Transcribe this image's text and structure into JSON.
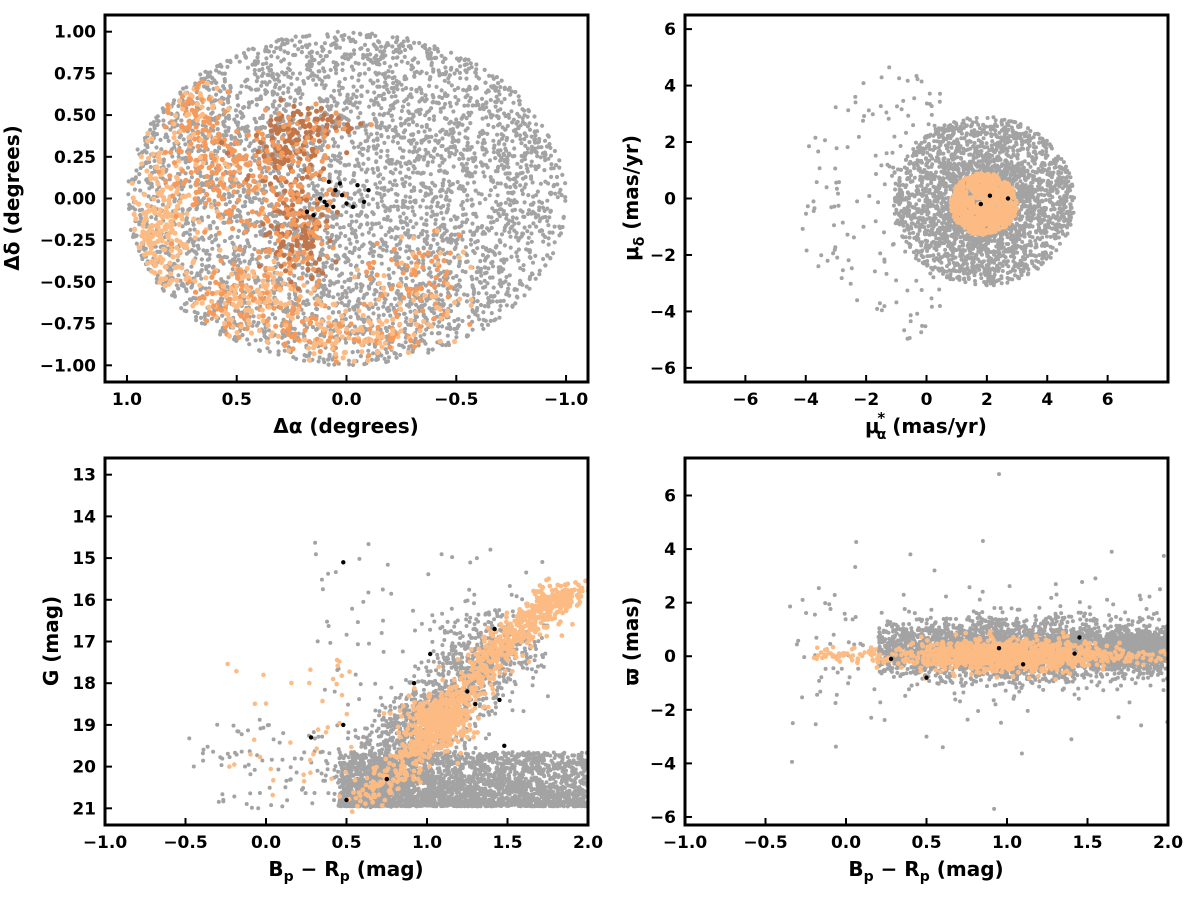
{
  "colors": {
    "field": "#a3a3a3",
    "member_light": "#fdbb84",
    "member_mid": "#f39a5c",
    "member_dark": "#c0764a",
    "core": "#000000"
  },
  "chart_data": [
    {
      "id": "sky",
      "type": "scatter",
      "xlabel_main": "Δα",
      "xlabel_unit": " (degrees)",
      "ylabel_main": "Δδ",
      "ylabel_unit": " (degrees)",
      "xlim": [
        1.1,
        -1.1
      ],
      "ylim": [
        -1.1,
        1.1
      ],
      "xticks": [
        "1.0",
        "0.5",
        "0.0",
        "−0.5",
        "−1.0"
      ],
      "xtick_values": [
        1.0,
        0.5,
        0.0,
        -0.5,
        -1.0
      ],
      "yticks": [
        "−1.00",
        "−0.75",
        "−0.50",
        "−0.25",
        "0.00",
        "0.25",
        "0.50",
        "0.75",
        "1.00"
      ],
      "ytick_values": [
        -1.0,
        -0.75,
        -0.5,
        -0.25,
        0.0,
        0.25,
        0.5,
        0.75,
        1.0
      ],
      "grid": false,
      "field_region": {
        "shape": "ellipse",
        "center": [
          0,
          0
        ],
        "radius": [
          1.0,
          1.0
        ],
        "count": 4200
      },
      "member_region": {
        "description_points": [
          [
            0.9,
            -0.1
          ],
          [
            0.7,
            0.3
          ],
          [
            0.5,
            -0.6
          ],
          [
            0.3,
            0.3
          ],
          [
            0.2,
            -0.2
          ],
          [
            0.0,
            -0.8
          ],
          [
            -0.4,
            -0.4
          ]
        ],
        "count": 1500
      },
      "core_points": [
        [
          0.05,
          0.05
        ],
        [
          0.1,
          -0.02
        ],
        [
          -0.05,
          0.08
        ],
        [
          0.0,
          -0.03
        ],
        [
          0.15,
          -0.1
        ],
        [
          0.08,
          0.1
        ],
        [
          -0.08,
          -0.02
        ],
        [
          0.02,
          0.02
        ],
        [
          0.12,
          0.0
        ],
        [
          -0.1,
          0.05
        ],
        [
          0.06,
          -0.05
        ],
        [
          0.18,
          -0.08
        ],
        [
          0.03,
          0.09
        ],
        [
          -0.03,
          -0.05
        ],
        [
          0.09,
          -0.04
        ]
      ]
    },
    {
      "id": "proper_motion",
      "type": "scatter",
      "xlabel_main": "μ",
      "xlabel_sub": "α",
      "xlabel_sup": "*",
      "xlabel_unit": "  (mas/yr)",
      "ylabel_main": "μ",
      "ylabel_sub": "δ",
      "ylabel_unit": " (mas/yr)",
      "xlim": [
        -8,
        8
      ],
      "ylim": [
        -6.5,
        6.5
      ],
      "xticks": [
        "−6",
        "−4",
        "−2",
        "0",
        "2",
        "4",
        "6"
      ],
      "xtick_values": [
        -6,
        -4,
        -2,
        0,
        2,
        4,
        6
      ],
      "yticks": [
        "−6",
        "−4",
        "−2",
        "0",
        "2",
        "4",
        "6"
      ],
      "ytick_values": [
        -6,
        -4,
        -2,
        0,
        2,
        4,
        6
      ],
      "grid": false,
      "field_center": [
        1.9,
        -0.1
      ],
      "field_radius": 3.0,
      "field_count": 3200,
      "member_center": [
        1.9,
        -0.2
      ],
      "member_radius": 1.1,
      "member_count": 700,
      "core_points": [
        [
          2.7,
          0.0
        ],
        [
          1.8,
          -0.2
        ],
        [
          2.1,
          0.1
        ]
      ]
    },
    {
      "id": "cmd",
      "type": "scatter",
      "xlabel_main": "B",
      "xlabel_sub1": "p",
      "xlabel_mid": " − R",
      "xlabel_sub2": "p",
      "xlabel_unit": " (mag)",
      "ylabel": "G (mag)",
      "xlim": [
        -1.0,
        2.0
      ],
      "ylim": [
        21.4,
        12.6
      ],
      "xticks": [
        "−1.0",
        "−0.5",
        "0.0",
        "0.5",
        "1.0",
        "1.5",
        "2.0"
      ],
      "xtick_values": [
        -1.0,
        -0.5,
        0.0,
        0.5,
        1.0,
        1.5,
        2.0
      ],
      "yticks": [
        "13",
        "14",
        "15",
        "16",
        "17",
        "18",
        "19",
        "20",
        "21"
      ],
      "ytick_values": [
        13,
        14,
        15,
        16,
        17,
        18,
        19,
        20,
        21
      ],
      "grid": false,
      "sequence": [
        [
          0.6,
          20.8
        ],
        [
          0.9,
          19.8
        ],
        [
          1.05,
          19.0
        ],
        [
          1.25,
          18.3
        ],
        [
          1.4,
          17.3
        ],
        [
          1.55,
          16.8
        ],
        [
          1.75,
          16.1
        ],
        [
          1.9,
          15.8
        ]
      ],
      "core_points": [
        [
          0.5,
          20.8
        ],
        [
          0.75,
          20.3
        ],
        [
          0.28,
          19.3
        ],
        [
          0.48,
          19.0
        ],
        [
          0.92,
          18.0
        ],
        [
          1.02,
          17.3
        ],
        [
          1.3,
          18.5
        ],
        [
          1.45,
          18.4
        ],
        [
          1.48,
          19.5
        ],
        [
          1.42,
          16.7
        ],
        [
          1.25,
          18.2
        ],
        [
          0.48,
          15.1
        ]
      ]
    },
    {
      "id": "parallax",
      "type": "scatter",
      "xlabel_main": "B",
      "xlabel_sub1": "p",
      "xlabel_mid": " − R",
      "xlabel_sub2": "p",
      "xlabel_unit": " (mag)",
      "ylabel": "ϖ (mas)",
      "xlim": [
        -1.0,
        2.0
      ],
      "ylim": [
        -6.3,
        7.4
      ],
      "xticks": [
        "−1.0",
        "−0.5",
        "0.0",
        "0.5",
        "1.0",
        "1.5",
        "2.0"
      ],
      "xtick_values": [
        -1.0,
        -0.5,
        0.0,
        0.5,
        1.0,
        1.5,
        2.0
      ],
      "yticks": [
        "−6",
        "−4",
        "−2",
        "0",
        "2",
        "4",
        "6"
      ],
      "ytick_values": [
        -6,
        -4,
        -2,
        0,
        2,
        4,
        6
      ],
      "grid": false,
      "core_points": [
        [
          0.28,
          -0.1
        ],
        [
          0.5,
          -0.8
        ],
        [
          0.95,
          0.3
        ],
        [
          1.45,
          0.7
        ],
        [
          1.42,
          0.1
        ],
        [
          1.1,
          -0.3
        ]
      ]
    }
  ]
}
